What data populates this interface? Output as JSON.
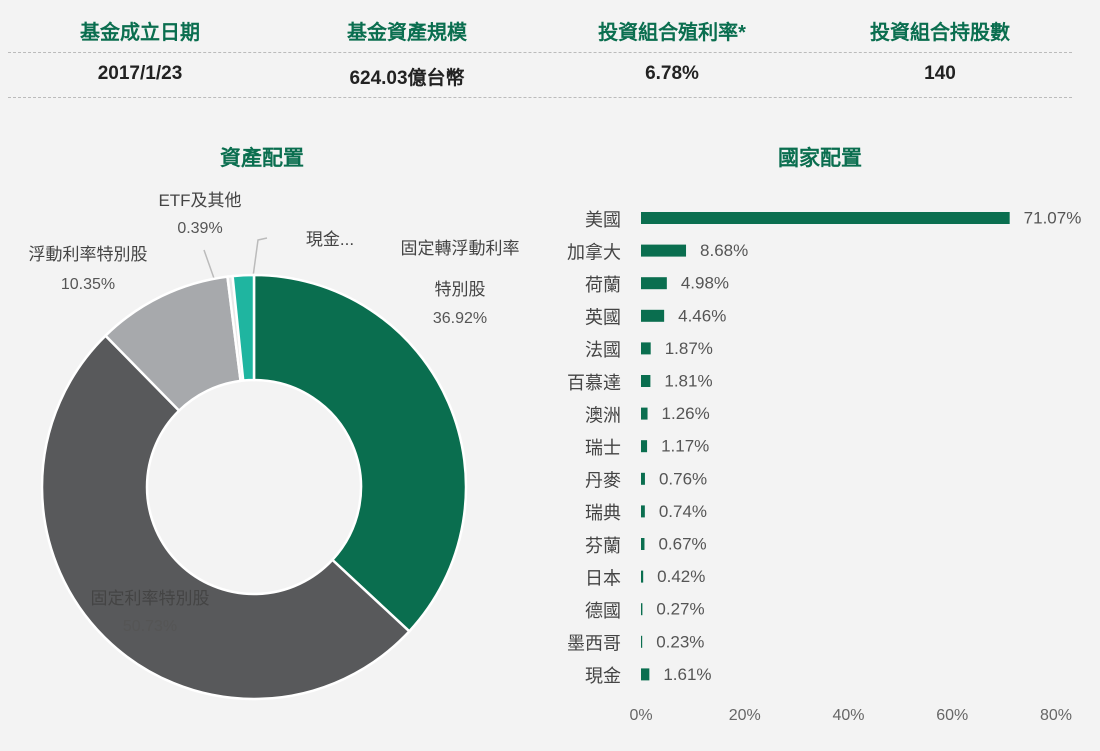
{
  "summary": {
    "headers": [
      "基金成立日期",
      "基金資產規模",
      "投資組合殖利率*",
      "投資組合持股數"
    ],
    "values": [
      "2017/1/23",
      "624.03億台幣",
      "6.78%",
      "140"
    ]
  },
  "chart_data": [
    {
      "type": "donut",
      "title": "資產配置",
      "categories": [
        "固定轉浮動利率特別股",
        "固定利率特別股",
        "浮動利率特別股",
        "ETF及其他",
        "現金..."
      ],
      "values": [
        36.92,
        50.73,
        10.35,
        0.39,
        1.61
      ],
      "value_labels": [
        "36.92%",
        "50.73%",
        "10.35%",
        "0.39%",
        null
      ],
      "colors": [
        "#0a6e4f",
        "#58595b",
        "#a7a9ac",
        "#e8e8e8",
        "#1fb5a0"
      ]
    },
    {
      "type": "barh",
      "title": "國家配置",
      "categories": [
        "美國",
        "加拿大",
        "荷蘭",
        "英國",
        "法國",
        "百慕達",
        "澳洲",
        "瑞士",
        "丹麥",
        "瑞典",
        "芬蘭",
        "日本",
        "德國",
        "墨西哥",
        "現金"
      ],
      "values": [
        71.07,
        8.68,
        4.98,
        4.46,
        1.87,
        1.81,
        1.26,
        1.17,
        0.76,
        0.74,
        0.67,
        0.42,
        0.27,
        0.23,
        1.61
      ],
      "value_labels": [
        "71.07%",
        "8.68%",
        "4.98%",
        "4.46%",
        "1.87%",
        "1.81%",
        "1.26%",
        "1.17%",
        "0.76%",
        "0.74%",
        "0.67%",
        "0.42%",
        "0.27%",
        "0.23%",
        "1.61%"
      ],
      "color": "#0a6e4f",
      "xlim": [
        0,
        80
      ],
      "xticks": [
        {
          "value": 0,
          "label": "0%"
        },
        {
          "value": 20,
          "label": "20%"
        },
        {
          "value": 40,
          "label": "40%"
        },
        {
          "value": 60,
          "label": "60%"
        },
        {
          "value": 80,
          "label": "80%"
        }
      ]
    }
  ]
}
